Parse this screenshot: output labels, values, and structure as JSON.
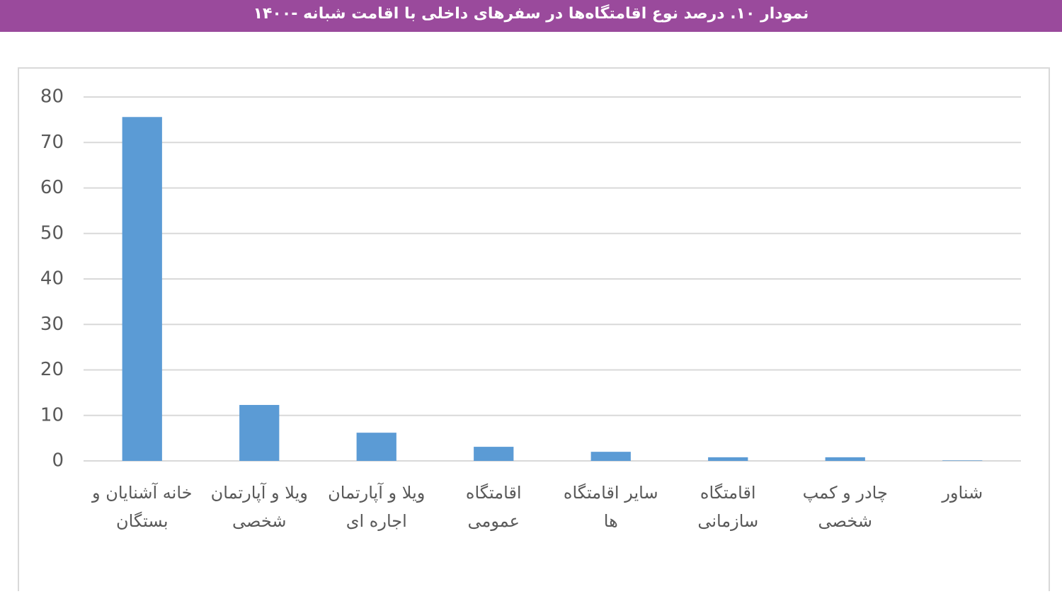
{
  "chart_data": {
    "type": "bar",
    "title": "نمودار ۱۰. درصد نوع اقامتگاه‌ها در سفرهای داخلی با اقامت شبانه -۱۴۰۰",
    "categories": [
      "خانه آشنایان و بستگان",
      "ویلا و آپارتمان شخصی",
      "ویلا و آپارتمان اجاره ای",
      "اقامتگاه عمومی",
      "سایر اقامتگاه ها",
      "اقامتگاه سازمانی",
      "چادر و کمپ شخصی",
      "شناور"
    ],
    "values": [
      75.6,
      12.3,
      6.2,
      3.1,
      2.0,
      0.8,
      0.8,
      0.1
    ],
    "color": "#5b9bd5",
    "ylim": [
      0,
      80
    ],
    "yticks": [
      0,
      10,
      20,
      30,
      40,
      50,
      60,
      70,
      80
    ],
    "grid": true
  }
}
